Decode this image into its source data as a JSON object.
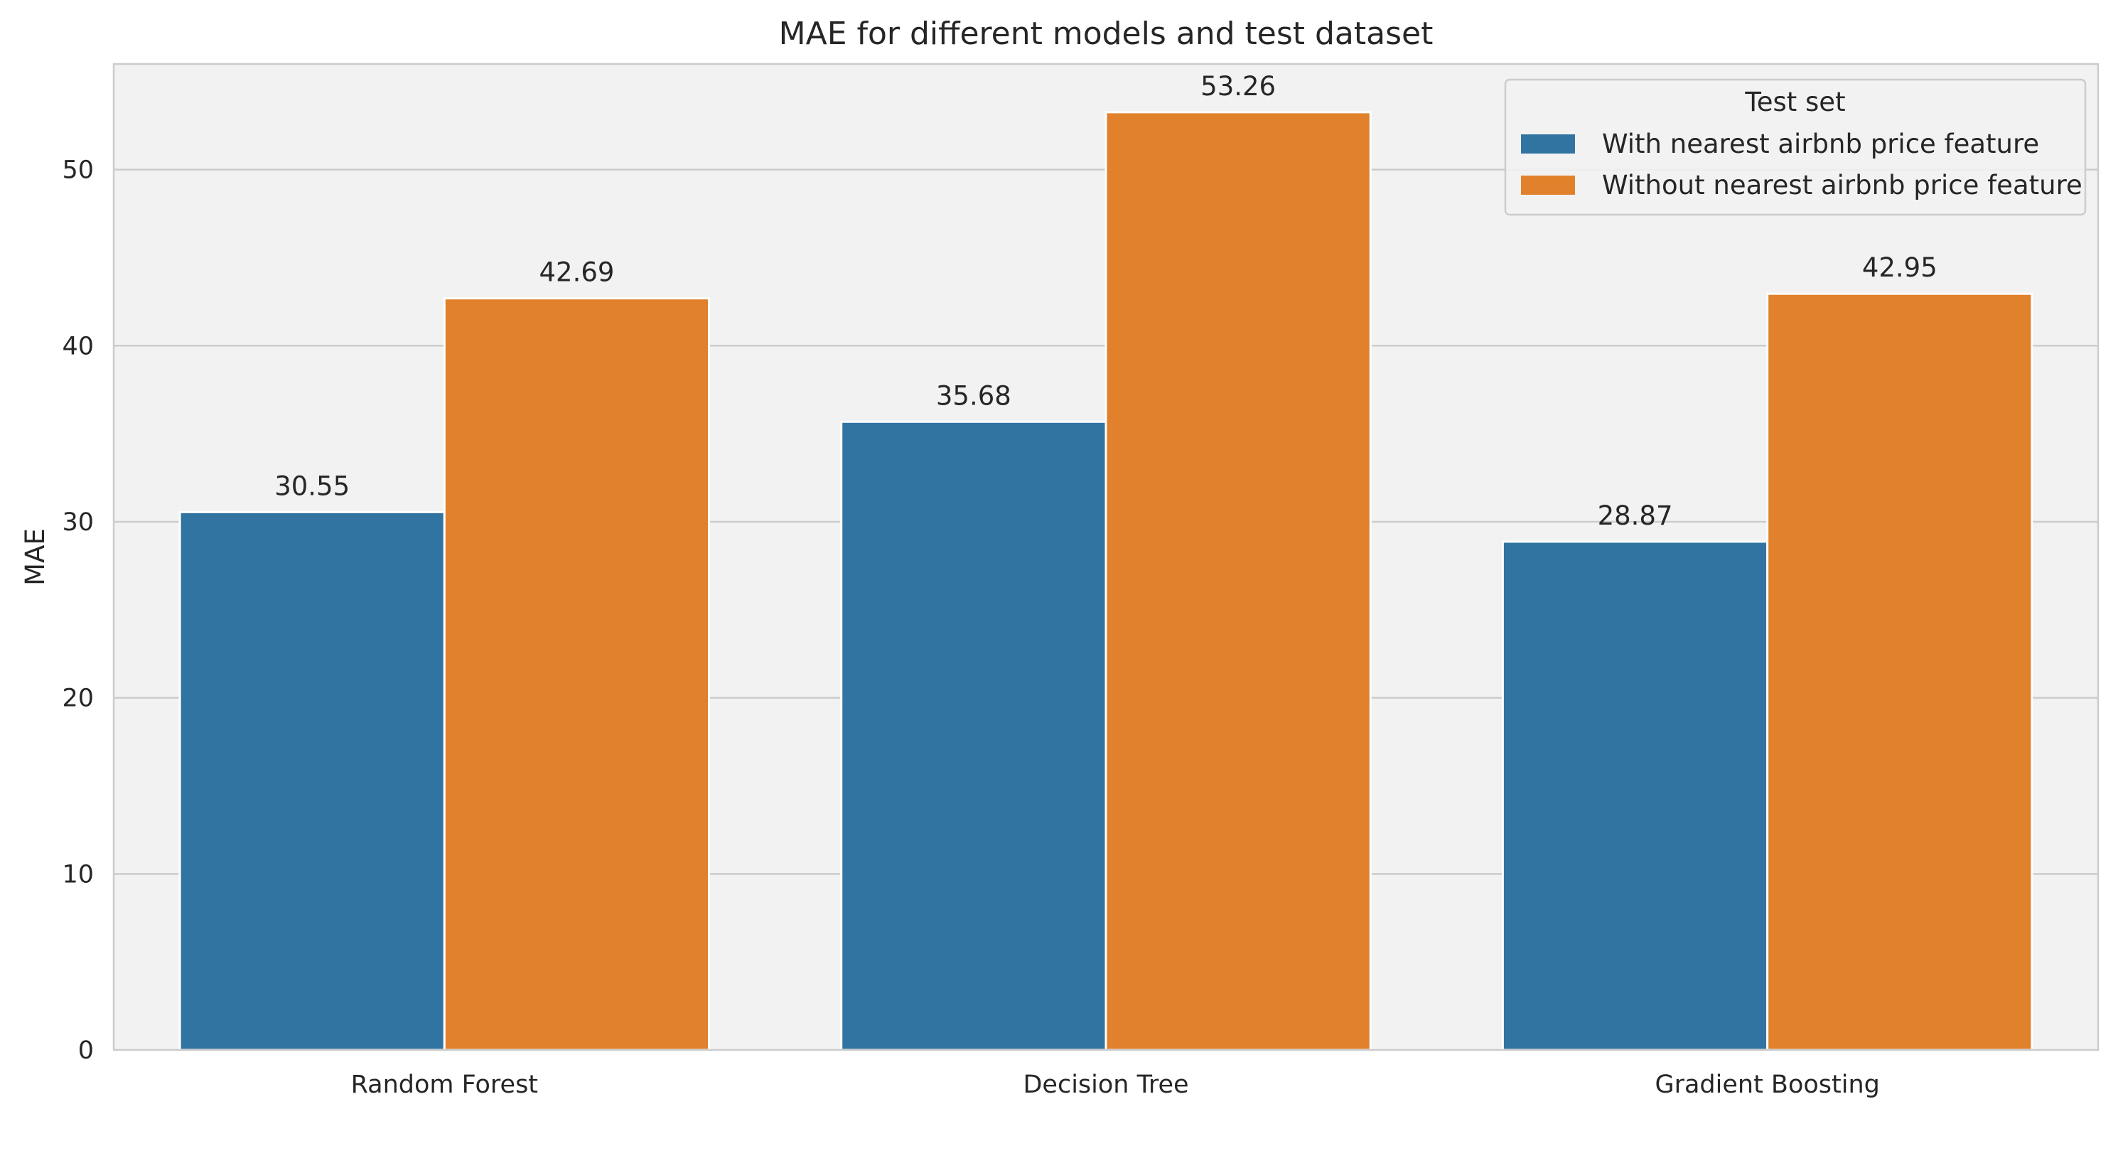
{
  "chart_data": {
    "type": "bar",
    "title": "MAE for different models and test dataset",
    "xlabel": "",
    "ylabel": "MAE",
    "categories": [
      "Random Forest",
      "Decision Tree",
      "Gradient Boosting"
    ],
    "series": [
      {
        "name": "With nearest airbnb price feature",
        "values": [
          30.55,
          35.68,
          28.87
        ],
        "labels": [
          "30.55",
          "35.68",
          "28.87"
        ],
        "color": "#3274a1"
      },
      {
        "name": "Without nearest airbnb price feature",
        "values": [
          42.69,
          53.26,
          42.95
        ],
        "labels": [
          "42.69",
          "53.26",
          "42.95"
        ],
        "color": "#e1812c"
      }
    ],
    "ylim": [
      0,
      56
    ],
    "yticks": [
      0,
      10,
      20,
      30,
      40,
      50
    ],
    "ytick_labels": [
      "0",
      "10",
      "20",
      "30",
      "40",
      "50"
    ],
    "grid": true,
    "legend": {
      "title": "Test set",
      "placement": "top-right"
    },
    "colors": {
      "plot_background": "#f2f2f2",
      "grid": "#cccccc",
      "axes_edge": "#cccccc"
    }
  }
}
